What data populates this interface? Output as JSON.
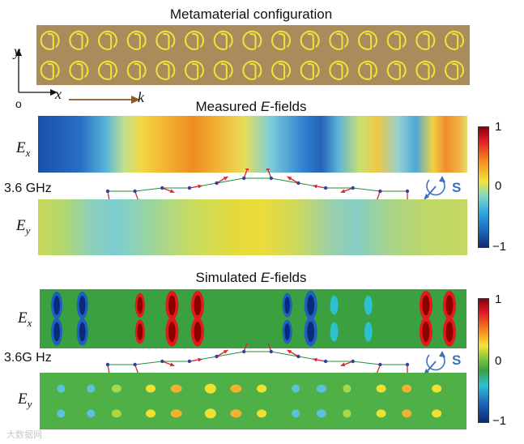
{
  "config_title": "Metamaterial configuration",
  "axes": {
    "y": "y",
    "x": "x",
    "origin": "o",
    "k": "k"
  },
  "measured": {
    "title_prefix": "Measured ",
    "title_italic": "E",
    "title_suffix": "-fields",
    "ex_base": "E",
    "ex_sub": "x",
    "ey_base": "E",
    "ey_sub": "y",
    "freq": "3.6 GHz",
    "spin": "S"
  },
  "simulated": {
    "title_prefix": "Simulated ",
    "title_italic": "E",
    "title_suffix": "-fields",
    "ex_base": "E",
    "ex_sub": "x",
    "ey_base": "E",
    "ey_sub": "y",
    "freq": "3.6G Hz",
    "spin": "S"
  },
  "colorbar": {
    "max": "1",
    "mid": "0",
    "min": "−1"
  },
  "watermark": "大数据网",
  "colors": {
    "substrate": "#a98c5c",
    "ring": "#f2e23a",
    "arrow": "#d8262a",
    "dot": "#3a3f9b",
    "line": "#1f8f3a",
    "spin": "#3b6fc4",
    "k_arrow": "#8a5a2a"
  }
}
